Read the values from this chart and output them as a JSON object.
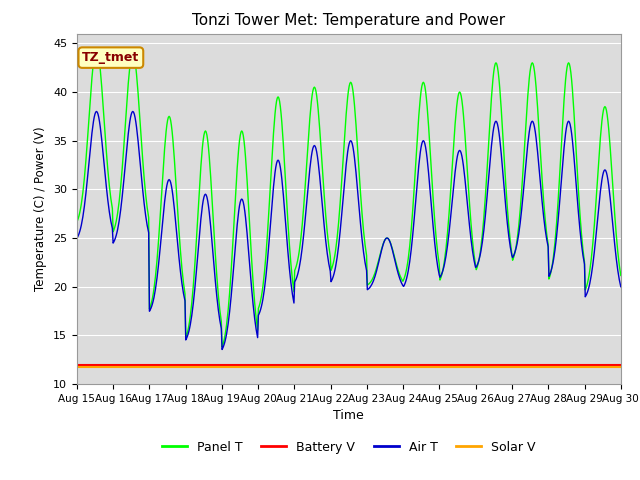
{
  "title": "Tonzi Tower Met: Temperature and Power",
  "xlabel": "Time",
  "ylabel": "Temperature (C) / Power (V)",
  "ylim": [
    10,
    46
  ],
  "yticks": [
    10,
    15,
    20,
    25,
    30,
    35,
    40,
    45
  ],
  "x_tick_labels": [
    "Aug 15",
    "Aug 16",
    "Aug 17",
    "Aug 18",
    "Aug 19",
    "Aug 20",
    "Aug 21",
    "Aug 22",
    "Aug 23",
    "Aug 24",
    "Aug 25",
    "Aug 26",
    "Aug 27",
    "Aug 28",
    "Aug 29",
    "Aug 30"
  ],
  "annotation_text": "TZ_tmet",
  "annotation_bg": "#FFFFC0",
  "annotation_border": "#CC8800",
  "annotation_text_color": "#880000",
  "panel_color": "#00FF00",
  "battery_color": "#FF0000",
  "air_color": "#0000CC",
  "solar_color": "#FFA500",
  "bg_color": "#DCDCDC",
  "grid_color": "#FFFFFF",
  "legend_labels": [
    "Panel T",
    "Battery V",
    "Air T",
    "Solar V"
  ],
  "battery_v": 12.0,
  "solar_v": 11.7,
  "panel_peaks": [
    44.5,
    44.0,
    37.5,
    36.0,
    36.0,
    39.5,
    40.5,
    41.0,
    25.0,
    41.0,
    40.0,
    43.0,
    43.0,
    43.0,
    38.5
  ],
  "panel_troughs": [
    26.0,
    25.0,
    17.0,
    14.0,
    13.0,
    17.0,
    21.0,
    21.0,
    20.0,
    20.0,
    20.0,
    21.0,
    22.0,
    20.0,
    19.0
  ],
  "air_peaks": [
    38.0,
    38.0,
    31.0,
    29.5,
    29.0,
    33.0,
    34.5,
    35.0,
    25.0,
    35.0,
    34.0,
    37.0,
    37.0,
    37.0,
    32.0
  ],
  "air_troughs": [
    24.5,
    24.0,
    17.0,
    14.0,
    13.0,
    16.5,
    20.0,
    20.0,
    19.5,
    19.5,
    20.5,
    21.5,
    22.5,
    20.5,
    18.5
  ]
}
